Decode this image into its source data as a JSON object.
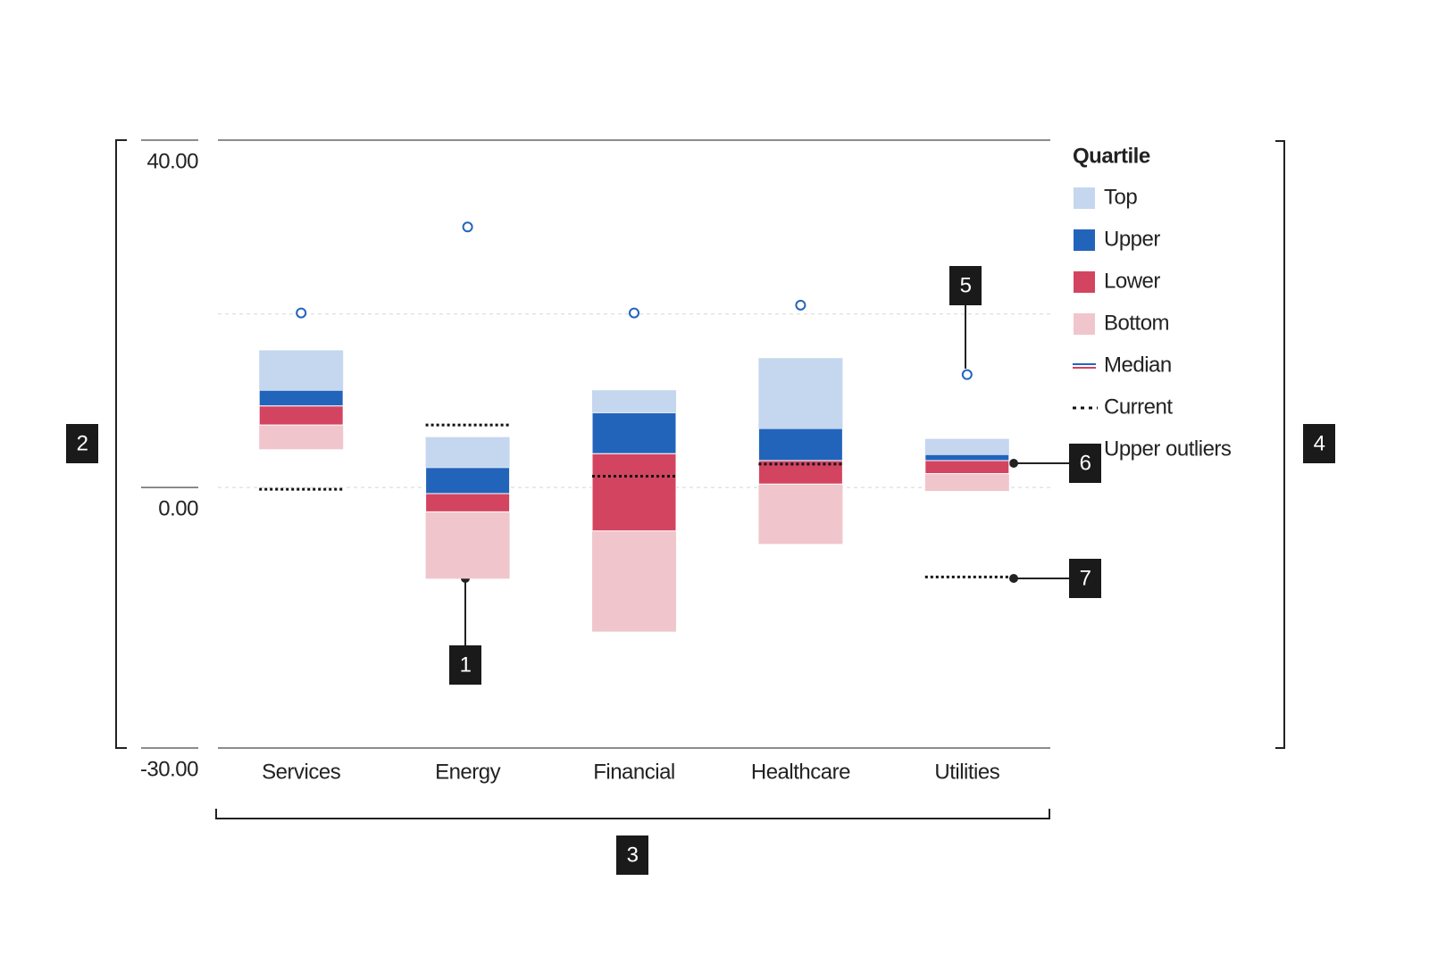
{
  "chart_data": {
    "type": "quartile",
    "categories": [
      "Services",
      "Energy",
      "Financial",
      "Healthcare",
      "Utilities"
    ],
    "start": [
      4.4,
      -10.5,
      -16.6,
      -6.5,
      -0.4
    ],
    "series": [
      {
        "name": "Bottom",
        "color": "#f0c6cc",
        "values": [
          2.8,
          7.7,
          11.6,
          6.9,
          2.0
        ]
      },
      {
        "name": "Lower",
        "color": "#d34460",
        "values": [
          2.2,
          2.1,
          8.9,
          2.7,
          1.5
        ]
      },
      {
        "name": "Upper",
        "color": "#2364bb",
        "values": [
          1.8,
          3.0,
          4.7,
          3.7,
          0.7
        ]
      },
      {
        "name": "Top",
        "color": "#c5d6ef",
        "values": [
          4.6,
          3.5,
          2.6,
          8.1,
          1.8
        ]
      }
    ],
    "median": {
      "name": "Median",
      "colors": [
        "#2364bb",
        "#d34460"
      ]
    },
    "current": {
      "name": "Current",
      "values": [
        -0.2,
        7.2,
        1.3,
        2.7,
        -10.3
      ]
    },
    "outliers": {
      "name": "Upper outliers",
      "color": "#2364bb",
      "values": [
        20.1,
        30.0,
        20.1,
        21.0,
        13.0
      ]
    },
    "legend_title": "Quartile",
    "ylim": [
      -30,
      40
    ],
    "yticks": [
      {
        "value": 40,
        "label": "40.00"
      },
      {
        "value": 0,
        "label": "0.00"
      },
      {
        "value": -30,
        "label": "-30.00"
      }
    ],
    "gridlines": [
      20,
      0
    ],
    "annotations": [
      "1",
      "2",
      "3",
      "4",
      "5",
      "6",
      "7"
    ]
  }
}
